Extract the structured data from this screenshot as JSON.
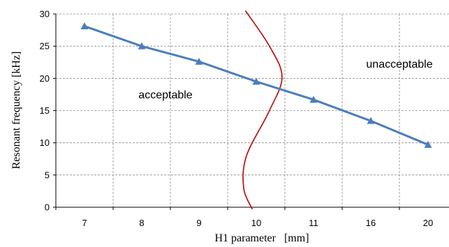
{
  "chart_data": {
    "type": "line",
    "title": "",
    "xlabel": "H1 parameter   [mm]",
    "ylabel": "Resonant frequency [kHz]",
    "categories": [
      "7",
      "8",
      "9",
      "10",
      "11",
      "16",
      "20"
    ],
    "ylim": [
      0,
      30
    ],
    "yticks": [
      0,
      5,
      10,
      15,
      20,
      25,
      30
    ],
    "grid": true,
    "series": [
      {
        "values": [
          28.1,
          25.0,
          22.6,
          19.5,
          16.7,
          13.4,
          9.7
        ],
        "color": "#4a7ebb",
        "marker": "triangle"
      }
    ],
    "boundary": {
      "color": "#c00000",
      "points": [
        [
          9.81,
          30.5
        ],
        [
          10.23,
          25.0
        ],
        [
          10.45,
          20.2
        ],
        [
          10.23,
          15.0
        ],
        [
          9.83,
          8.0
        ],
        [
          9.78,
          3.0
        ],
        [
          9.93,
          -0.3
        ]
      ]
    },
    "annotations": {
      "left_region": "acceptable",
      "right_region": "unacceptable"
    }
  }
}
